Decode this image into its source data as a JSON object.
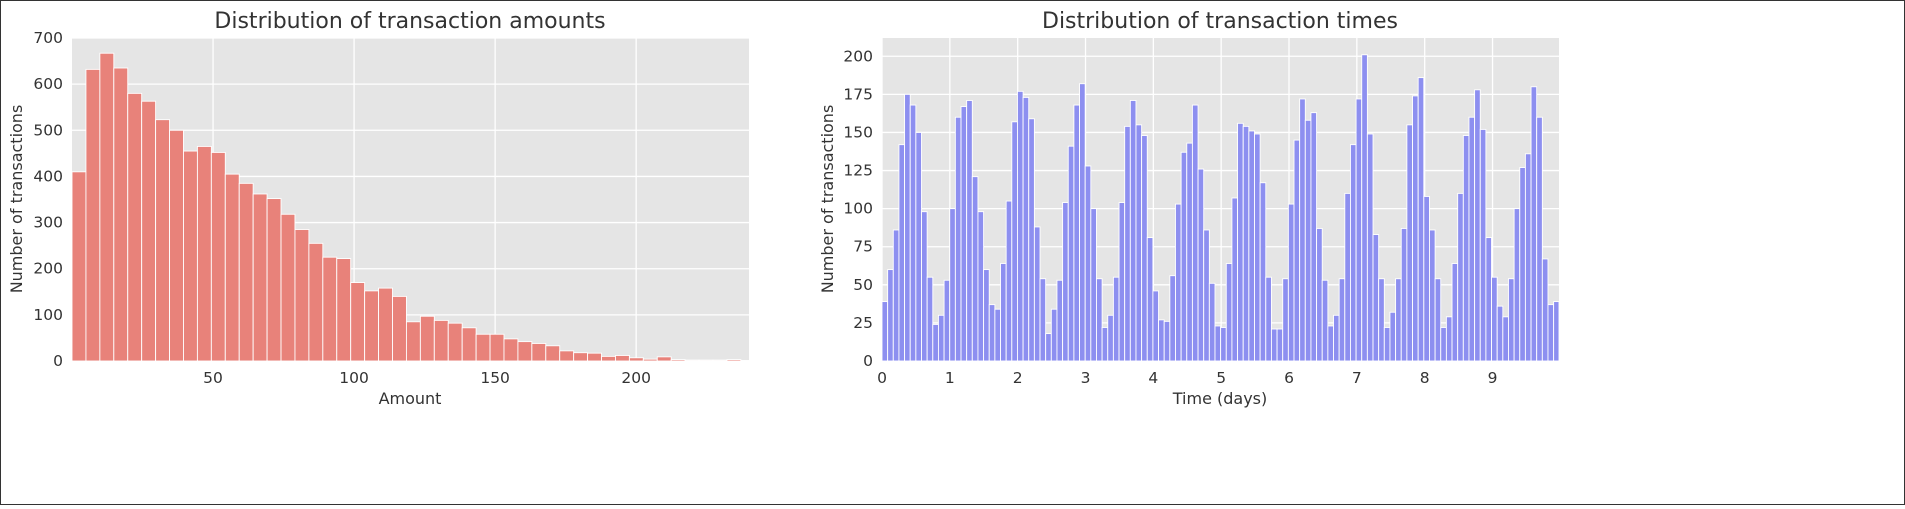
{
  "chart_data": [
    {
      "type": "bar",
      "title": "Distribution of transaction amounts",
      "xlabel": "Amount",
      "ylabel": "Number of transactions",
      "color": "#e8827a",
      "xlim": [
        0,
        240
      ],
      "ylim": [
        0,
        700
      ],
      "xticks": [
        50,
        100,
        150,
        200
      ],
      "yticks": [
        0,
        100,
        200,
        300,
        400,
        500,
        600,
        700
      ],
      "bin_width": 4.94,
      "bin_start": 0,
      "values": [
        410,
        632,
        667,
        635,
        580,
        563,
        523,
        500,
        455,
        465,
        452,
        405,
        385,
        362,
        352,
        318,
        285,
        255,
        225,
        222,
        170,
        152,
        158,
        140,
        85,
        97,
        88,
        82,
        72,
        58,
        58,
        48,
        42,
        38,
        33,
        22,
        18,
        17,
        10,
        12,
        7,
        4,
        9,
        3,
        2,
        2,
        2,
        3,
        1
      ]
    },
    {
      "type": "bar",
      "title": "Distribution of transaction times",
      "xlabel": "Time (days)",
      "ylabel": "Number of transactions",
      "color": "#8d8ff0",
      "xlim": [
        0,
        9.98
      ],
      "ylim": [
        0,
        212
      ],
      "xticks": [
        0,
        1,
        2,
        3,
        4,
        5,
        6,
        7,
        8,
        9
      ],
      "yticks": [
        0,
        25,
        50,
        75,
        100,
        125,
        150,
        175,
        200
      ],
      "bin_width": 0.0832,
      "bin_start": 0,
      "values": [
        39,
        60,
        86,
        142,
        175,
        168,
        150,
        98,
        55,
        24,
        30,
        53,
        100,
        160,
        167,
        171,
        121,
        98,
        60,
        37,
        34,
        64,
        105,
        157,
        177,
        173,
        159,
        88,
        54,
        18,
        34,
        53,
        104,
        141,
        168,
        182,
        128,
        100,
        54,
        22,
        30,
        55,
        104,
        154,
        171,
        155,
        148,
        81,
        46,
        27,
        26,
        56,
        103,
        137,
        143,
        168,
        126,
        86,
        51,
        23,
        22,
        64,
        107,
        156,
        154,
        151,
        149,
        117,
        55,
        21,
        21,
        54,
        103,
        145,
        172,
        158,
        163,
        87,
        53,
        23,
        30,
        54,
        110,
        142,
        172,
        201,
        149,
        83,
        54,
        22,
        32,
        54,
        87,
        155,
        174,
        186,
        108,
        86,
        54,
        22,
        29,
        64,
        110,
        148,
        160,
        178,
        152,
        81,
        55,
        36,
        29,
        54,
        100,
        127,
        136,
        180,
        160,
        67,
        37,
        39
      ]
    }
  ]
}
